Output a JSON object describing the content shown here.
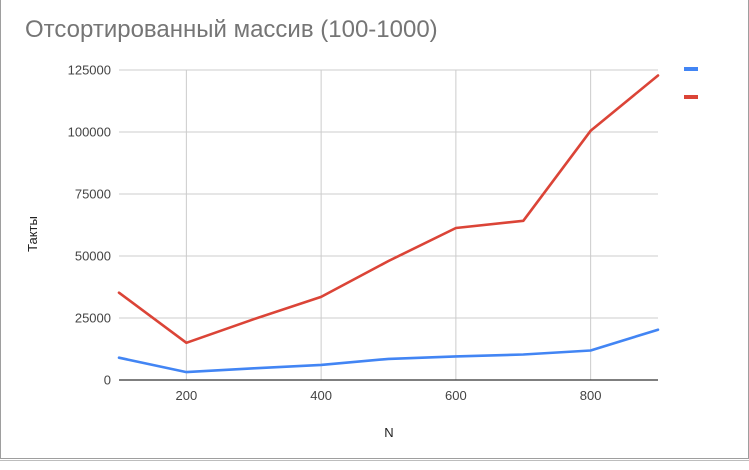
{
  "chart_data": {
    "type": "line",
    "title": "Отсортированный массив (100-1000)",
    "xlabel": "N",
    "ylabel": "Такты",
    "x": [
      100,
      200,
      300,
      400,
      500,
      600,
      700,
      800,
      900
    ],
    "xlim": [
      100,
      900
    ],
    "ylim": [
      0,
      125000
    ],
    "x_ticks": [
      200,
      400,
      600,
      800
    ],
    "y_ticks": [
      0,
      25000,
      50000,
      75000,
      100000,
      125000
    ],
    "grid": true,
    "legend": "right",
    "series": [
      {
        "color": "#4285f4",
        "values": [
          9000,
          3200,
          4700,
          6100,
          8500,
          9500,
          10300,
          11900,
          20300
        ]
      },
      {
        "color": "#db4437",
        "values": [
          35200,
          15000,
          24500,
          33500,
          48000,
          61300,
          64200,
          100500,
          122800
        ]
      }
    ]
  }
}
